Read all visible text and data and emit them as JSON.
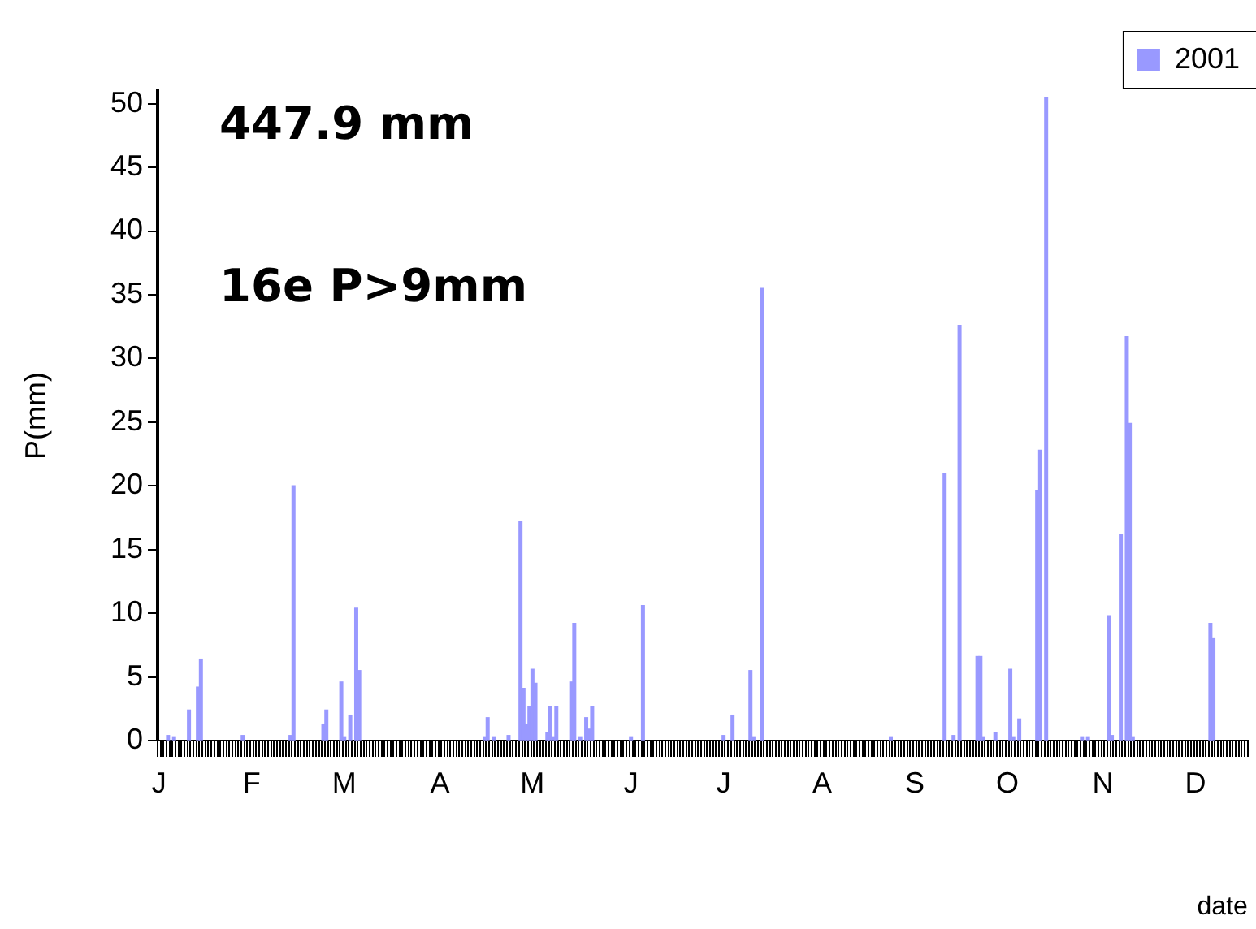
{
  "chart_data": {
    "type": "bar",
    "categories": [
      "J",
      null,
      null,
      null,
      null,
      null,
      null,
      null,
      null,
      null,
      null,
      null,
      null,
      null,
      null,
      null,
      null,
      null,
      null,
      null,
      null,
      null,
      null,
      null,
      null,
      null,
      null,
      null,
      null,
      null,
      null,
      "F",
      null,
      null,
      null,
      null,
      null,
      null,
      null,
      null,
      null,
      null,
      null,
      null,
      null,
      null,
      null,
      null,
      null,
      null,
      null,
      null,
      null,
      null,
      null,
      null,
      null,
      null,
      null,
      null,
      null,
      null,
      "M",
      null,
      null,
      null,
      null,
      null,
      null,
      null,
      null,
      null,
      null,
      null,
      null,
      null,
      null,
      null,
      null,
      null,
      null,
      null,
      null,
      null,
      null,
      null,
      null,
      null,
      null,
      null,
      null,
      null,
      null,
      null,
      "A",
      null,
      null,
      null,
      null,
      null,
      null,
      null,
      null,
      null,
      null,
      null,
      null,
      null,
      null,
      null,
      null,
      null,
      null,
      null,
      null,
      null,
      null,
      null,
      null,
      null,
      null,
      null,
      null,
      null,
      null,
      "M",
      null,
      null,
      null,
      null,
      null,
      null,
      null,
      null,
      null,
      null,
      null,
      null,
      null,
      null,
      null,
      null,
      null,
      null,
      null,
      null,
      null,
      null,
      null,
      null,
      null,
      null,
      null,
      null,
      null,
      null,
      null,
      null,
      "J",
      null,
      null,
      null,
      null,
      null,
      null,
      null,
      null,
      null,
      null,
      null,
      null,
      null,
      null,
      null,
      null,
      null,
      null,
      null,
      null,
      null,
      null,
      null,
      null,
      null,
      null,
      null,
      null,
      null,
      null,
      "J",
      null,
      null,
      null,
      null,
      null,
      null,
      null,
      null,
      null,
      null,
      null,
      null,
      null,
      null,
      null,
      null,
      null,
      null,
      null,
      null,
      null,
      null,
      null,
      null,
      null,
      null,
      null,
      null,
      null,
      null,
      null,
      null,
      "A",
      null,
      null,
      null,
      null,
      null,
      null,
      null,
      null,
      null,
      null,
      null,
      null,
      null,
      null,
      null,
      null,
      null,
      null,
      null,
      null,
      null,
      null,
      null,
      null,
      null,
      null,
      null,
      null,
      null,
      null,
      "S",
      null,
      null,
      null,
      null,
      null,
      null,
      null,
      null,
      null,
      null,
      null,
      null,
      null,
      null,
      null,
      null,
      null,
      null,
      null,
      null,
      null,
      null,
      null,
      null,
      null,
      null,
      null,
      null,
      null,
      null,
      "O",
      null,
      null,
      null,
      null,
      null,
      null,
      null,
      null,
      null,
      null,
      null,
      null,
      null,
      null,
      null,
      null,
      null,
      null,
      null,
      null,
      null,
      null,
      null,
      null,
      null,
      null,
      null,
      null,
      null,
      null,
      null,
      "N",
      null,
      null,
      null,
      null,
      null,
      null,
      null,
      null,
      null,
      null,
      null,
      null,
      null,
      null,
      null,
      null,
      null,
      null,
      null,
      null,
      null,
      null,
      null,
      null,
      null,
      null,
      null,
      null,
      null,
      null,
      "D",
      null,
      null,
      null,
      null,
      null,
      null,
      null,
      null,
      null,
      null,
      null,
      null,
      null,
      null,
      null,
      null,
      null
    ],
    "series": [
      {
        "name": "2001",
        "color": "#9999ff",
        "values": [
          null,
          null,
          null,
          0.4,
          null,
          0.3,
          null,
          null,
          null,
          null,
          2.4,
          null,
          null,
          4.2,
          6.4,
          null,
          null,
          null,
          null,
          null,
          null,
          null,
          null,
          null,
          null,
          null,
          null,
          null,
          0.4,
          null,
          null,
          null,
          null,
          null,
          null,
          null,
          null,
          null,
          null,
          null,
          null,
          null,
          null,
          null,
          0.4,
          20,
          null,
          null,
          null,
          null,
          null,
          null,
          null,
          null,
          null,
          1.3,
          2.4,
          null,
          null,
          null,
          null,
          4.6,
          0.3,
          null,
          2,
          null,
          10.4,
          5.5,
          null,
          null,
          null,
          null,
          null,
          null,
          null,
          null,
          null,
          null,
          null,
          null,
          null,
          null,
          null,
          null,
          null,
          null,
          null,
          null,
          null,
          null,
          null,
          null,
          null,
          null,
          null,
          null,
          null,
          null,
          null,
          null,
          null,
          null,
          null,
          null,
          null,
          null,
          null,
          null,
          null,
          0.3,
          1.8,
          null,
          0.3,
          null,
          null,
          null,
          null,
          0.4,
          null,
          null,
          null,
          17.2,
          4.1,
          1.3,
          2.7,
          5.6,
          4.5,
          null,
          null,
          null,
          0.6,
          2.7,
          0.3,
          2.7,
          null,
          null,
          null,
          null,
          4.6,
          9.2,
          null,
          0.3,
          null,
          1.8,
          0.9,
          2.7,
          null,
          null,
          null,
          null,
          null,
          null,
          null,
          null,
          null,
          null,
          null,
          null,
          0.3,
          null,
          null,
          null,
          10.6,
          null,
          null,
          null,
          null,
          null,
          null,
          null,
          null,
          null,
          null,
          null,
          null,
          null,
          null,
          null,
          null,
          null,
          null,
          null,
          null,
          null,
          null,
          null,
          null,
          null,
          null,
          0.4,
          null,
          null,
          2,
          null,
          null,
          null,
          null,
          null,
          5.5,
          0.3,
          null,
          null,
          35.5,
          null,
          null,
          null,
          null,
          null,
          null,
          null,
          null,
          null,
          null,
          null,
          null,
          null,
          null,
          null,
          null,
          null,
          null,
          null,
          null,
          null,
          null,
          null,
          null,
          null,
          null,
          null,
          null,
          null,
          null,
          null,
          null,
          null,
          null,
          null,
          null,
          null,
          null,
          null,
          null,
          null,
          null,
          0.3,
          null,
          null,
          null,
          null,
          null,
          null,
          null,
          null,
          null,
          null,
          null,
          null,
          null,
          null,
          null,
          null,
          null,
          21,
          null,
          null,
          0.4,
          null,
          32.6,
          null,
          null,
          null,
          null,
          null,
          6.6,
          6.6,
          0.3,
          null,
          null,
          null,
          0.6,
          null,
          null,
          null,
          null,
          5.6,
          0.3,
          null,
          1.7,
          null,
          null,
          null,
          null,
          null,
          19.6,
          22.8,
          null,
          50.5,
          null,
          null,
          null,
          null,
          null,
          null,
          null,
          null,
          null,
          null,
          null,
          0.3,
          null,
          0.3,
          null,
          null,
          null,
          null,
          null,
          null,
          9.8,
          0.4,
          null,
          null,
          16.2,
          null,
          31.7,
          24.9,
          0.3,
          null,
          null,
          null,
          null,
          null,
          null,
          null,
          null,
          null,
          null,
          null,
          null,
          null,
          null,
          null,
          null,
          null,
          null,
          null,
          null,
          null,
          null,
          null,
          null,
          null,
          9.2,
          8,
          null,
          null,
          null,
          null,
          null,
          null,
          null,
          null,
          null,
          null,
          null
        ]
      }
    ],
    "xlabel": "date",
    "ylabel": "P(mm)",
    "ylim": [
      0,
      51
    ],
    "yticks": [
      0,
      5,
      10,
      15,
      20,
      25,
      30,
      35,
      40,
      45,
      50
    ],
    "grid": false,
    "legend": "top right",
    "annotations": [
      "447.9 mm",
      "16e P>9mm"
    ]
  }
}
